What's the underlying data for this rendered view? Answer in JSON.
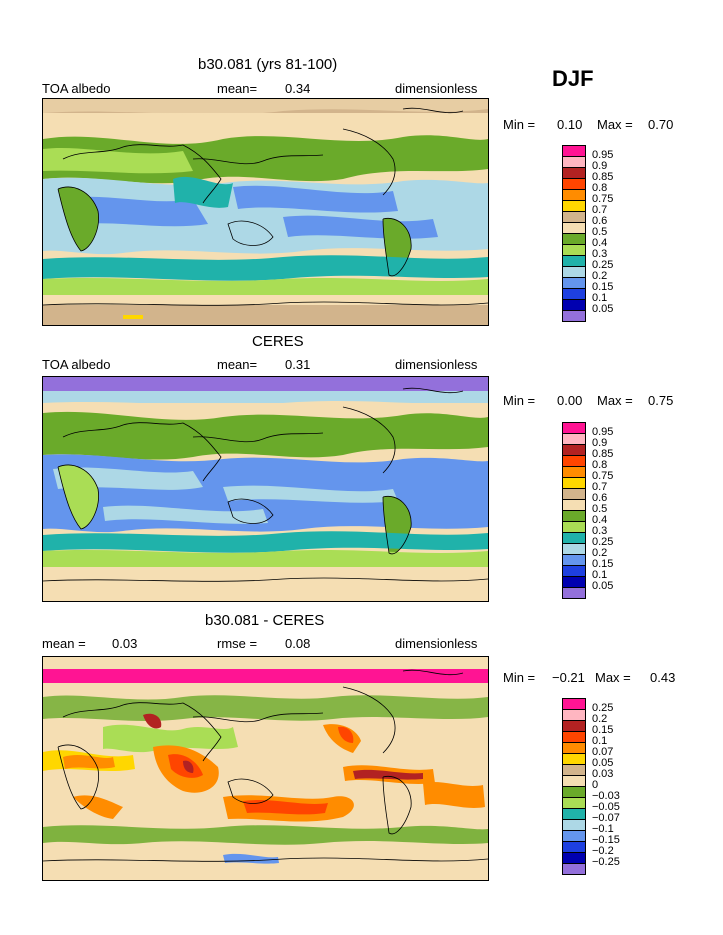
{
  "season": "DJF",
  "panels": [
    {
      "title": "b30.081 (yrs 81-100)",
      "left": "TOA albedo",
      "center_label": "mean=",
      "center_value": "0.34",
      "right": "dimensionless",
      "minmax": {
        "min_label": "Min =",
        "min": "0.10",
        "max_label": "Max =",
        "max": "0.70"
      }
    },
    {
      "title": "CERES",
      "left": "TOA albedo",
      "center_label": "mean=",
      "center_value": "0.31",
      "right": "dimensionless",
      "minmax": {
        "min_label": "Min =",
        "min": "0.00",
        "max_label": "Max =",
        "max": "0.75"
      }
    },
    {
      "title": "b30.081 - CERES",
      "left_label": "mean =",
      "left_value": "0.03",
      "center_label": "rmse =",
      "center_value": "0.08",
      "right": "dimensionless",
      "minmax": {
        "min_label": "Min =",
        "min": "−0.21",
        "max_label": "Max =",
        "max": "0.43"
      }
    }
  ],
  "colorbars": {
    "albedo": {
      "labels": [
        "0.95",
        "0.9",
        "0.85",
        "0.8",
        "0.75",
        "0.7",
        "0.6",
        "0.5",
        "0.4",
        "0.3",
        "0.25",
        "0.2",
        "0.15",
        "0.1",
        "0.05"
      ],
      "colors": [
        "#ff1493",
        "#ffb6c1",
        "#b22222",
        "#ff4500",
        "#ff8c00",
        "#ffd700",
        "#d2b48c",
        "#f5deb3",
        "#6aaa2a",
        "#aadd55",
        "#20b2aa",
        "#add8e6",
        "#6495ed",
        "#1e40e0",
        "#0000b0",
        "#9370db"
      ]
    },
    "diff": {
      "labels": [
        "0.25",
        "0.2",
        "0.15",
        "0.1",
        "0.07",
        "0.05",
        "0.03",
        "0",
        "−0.03",
        "−0.05",
        "−0.07",
        "−0.1",
        "−0.15",
        "−0.2",
        "−0.25"
      ],
      "colors": [
        "#ff1493",
        "#ffb6c1",
        "#b22222",
        "#ff4500",
        "#ff8c00",
        "#ffd700",
        "#d2b48c",
        "#f5deb3",
        "#6aaa2a",
        "#aadd55",
        "#20b2aa",
        "#add8e6",
        "#6495ed",
        "#1e40e0",
        "#0000b0",
        "#9370db"
      ]
    }
  },
  "chart_data": [
    {
      "type": "heatmap",
      "title": "b30.081 (yrs 81-100)",
      "variable": "TOA albedo",
      "units": "dimensionless",
      "mean": 0.34,
      "min": 0.1,
      "max": 0.7,
      "levels": [
        0.05,
        0.1,
        0.15,
        0.2,
        0.25,
        0.3,
        0.4,
        0.5,
        0.6,
        0.7,
        0.75,
        0.8,
        0.85,
        0.9,
        0.95
      ]
    },
    {
      "type": "heatmap",
      "title": "CERES",
      "variable": "TOA albedo",
      "units": "dimensionless",
      "mean": 0.31,
      "min": 0.0,
      "max": 0.75,
      "levels": [
        0.05,
        0.1,
        0.15,
        0.2,
        0.25,
        0.3,
        0.4,
        0.5,
        0.6,
        0.7,
        0.75,
        0.8,
        0.85,
        0.9,
        0.95
      ]
    },
    {
      "type": "heatmap",
      "title": "b30.081 - CERES",
      "units": "dimensionless",
      "mean": 0.03,
      "rmse": 0.08,
      "min": -0.21,
      "max": 0.43,
      "levels": [
        -0.25,
        -0.2,
        -0.15,
        -0.1,
        -0.07,
        -0.05,
        -0.03,
        0,
        0.03,
        0.05,
        0.07,
        0.1,
        0.15,
        0.2,
        0.25
      ]
    }
  ]
}
